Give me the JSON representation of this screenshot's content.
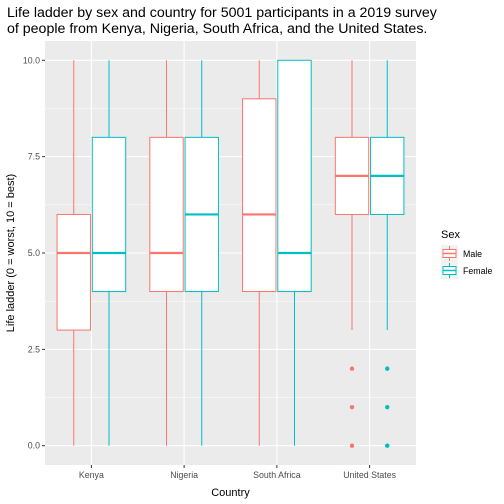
{
  "chart_data": {
    "type": "boxplot",
    "title_lines": [
      "Life ladder by sex and country for 5001 participants in a 2019 survey",
      "of people from Kenya, Nigeria, South Africa, and the United States."
    ],
    "xlabel": "Country",
    "ylabel": "Life ladder (0 = worst, 10 = best)",
    "categories": [
      "Kenya",
      "Nigeria",
      "South Africa",
      "United States"
    ],
    "yticks": [
      0,
      2.5,
      5,
      7.5,
      10
    ],
    "ytick_labels": [
      "0.0",
      "2.5",
      "5.0",
      "7.5",
      "10.0"
    ],
    "ylim": [
      -0.5,
      10.5
    ],
    "grid": true,
    "legend": {
      "title": "Sex",
      "position": "right",
      "entries": [
        {
          "label": "Male",
          "color": "#F8766D"
        },
        {
          "label": "Female",
          "color": "#00BFC4"
        }
      ]
    },
    "series": [
      {
        "name": "Male",
        "color": "#F8766D",
        "boxes": [
          {
            "min": 0,
            "q1": 3,
            "median": 5,
            "q3": 6,
            "max": 10,
            "outliers": []
          },
          {
            "min": 0,
            "q1": 4,
            "median": 5,
            "q3": 8,
            "max": 10,
            "outliers": []
          },
          {
            "min": 0,
            "q1": 4,
            "median": 6,
            "q3": 9,
            "max": 10,
            "outliers": []
          },
          {
            "min": 3,
            "q1": 6,
            "median": 7,
            "q3": 8,
            "max": 10,
            "outliers": [
              0,
              1,
              2
            ]
          }
        ]
      },
      {
        "name": "Female",
        "color": "#00BFC4",
        "boxes": [
          {
            "min": 0,
            "q1": 4,
            "median": 5,
            "q3": 8,
            "max": 10,
            "outliers": []
          },
          {
            "min": 0,
            "q1": 4,
            "median": 6,
            "q3": 8,
            "max": 10,
            "outliers": []
          },
          {
            "min": 0,
            "q1": 4,
            "median": 5,
            "q3": 10,
            "max": 10,
            "outliers": []
          },
          {
            "min": 3,
            "q1": 6,
            "median": 7,
            "q3": 8,
            "max": 10,
            "outliers": [
              0,
              1,
              2
            ]
          }
        ]
      }
    ],
    "panel_background": "#EBEBEB",
    "grid_color": "#FFFFFF"
  }
}
